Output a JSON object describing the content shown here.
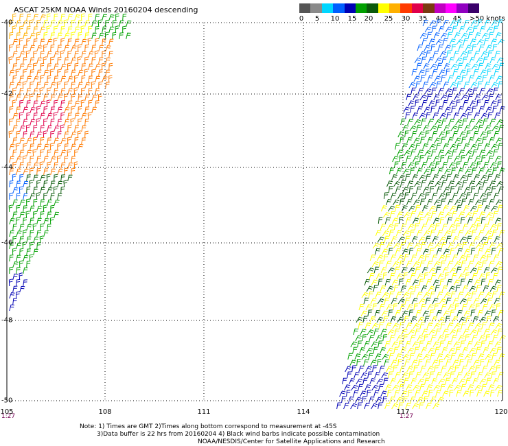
{
  "title": "ASCAT 25KM NOAA Winds 20160204 descending",
  "legend": {
    "colors": [
      "#555555",
      "#8a8a8a",
      "#00d6ff",
      "#0060ff",
      "#0000b4",
      "#00a000",
      "#0a5a0a",
      "#ffff00",
      "#ffb000",
      "#ff3a00",
      "#e0004a",
      "#7a3a10",
      "#c000c0",
      "#ff00ff",
      "#9000c0",
      "#3a006a"
    ],
    "labels": [
      "0",
      "5",
      "10",
      "15",
      "20",
      "25",
      "30",
      "35",
      "40",
      "45",
      ">50 knots"
    ]
  },
  "lat_labels": [
    "-40",
    "-42",
    "-44",
    "-46",
    "-48",
    "-50"
  ],
  "lon_labels": [
    "105",
    "108",
    "111",
    "114",
    "117",
    "120"
  ],
  "time_labels": [
    "1:27",
    "1:27"
  ],
  "notes": {
    "line1": "Note: 1) Times are GMT 2)Times along bottom correspond to measurement at -45S",
    "line2": "3)Data buffer is 22 hrs from 20160204 4) Black wind barbs indicate possible contamination",
    "line3": "NOAA/NESDIS/Center for Satellite Applications and Research"
  }
}
